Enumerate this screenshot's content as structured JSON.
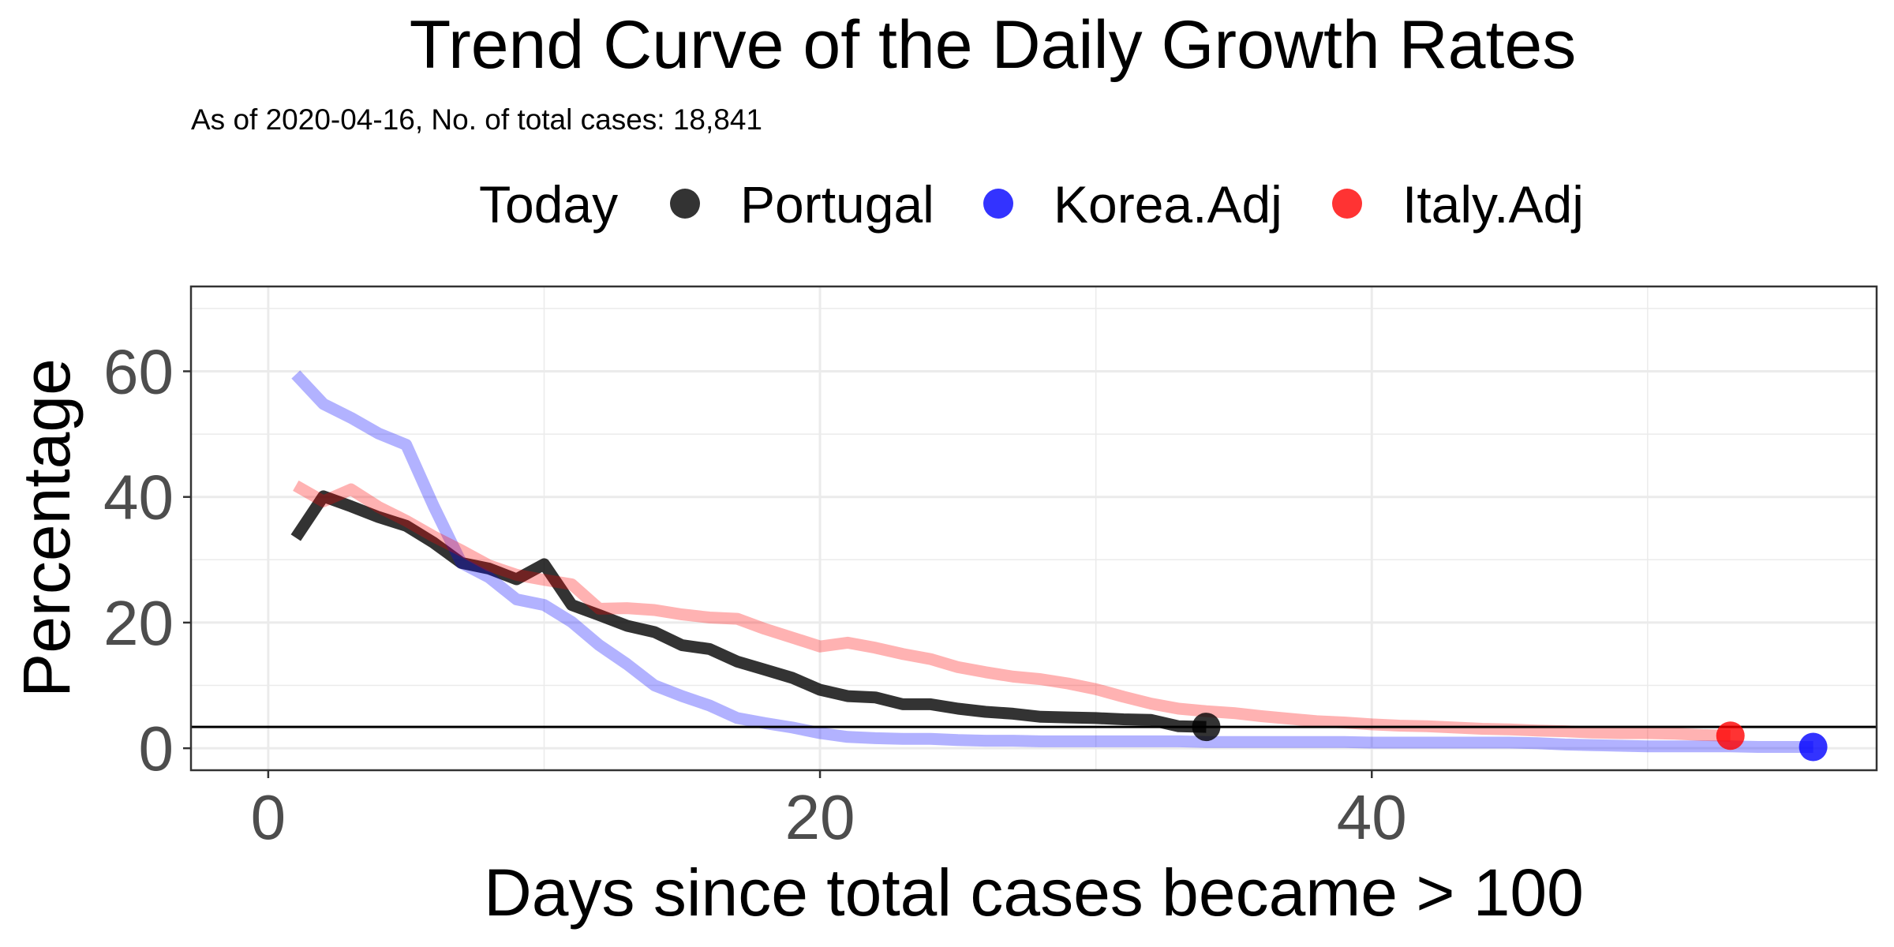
{
  "chart_data": {
    "type": "line",
    "title": "Trend Curve of the Daily Growth Rates",
    "subtitle": "As of 2020-04-16, No. of total cases: 18,841",
    "xlabel": "Days since total cases became > 100",
    "ylabel": "Percentage",
    "xlim": [
      -2.8,
      58.3
    ],
    "ylim": [
      -3.5,
      73.5
    ],
    "x_ticks": [
      0,
      20,
      40
    ],
    "y_ticks": [
      0,
      20,
      40,
      60
    ],
    "grid": true,
    "legend_position": "top",
    "legend_title": "Today",
    "reference_line_y": 3.4,
    "series": [
      {
        "name": "Portugal",
        "color": "#000000",
        "opacity": 0.8,
        "x": [
          1,
          2,
          3,
          4,
          5,
          6,
          7,
          8,
          9,
          10,
          11,
          12,
          13,
          14,
          15,
          16,
          17,
          18,
          19,
          20,
          21,
          22,
          23,
          24,
          25,
          26,
          27,
          28,
          29,
          30,
          31,
          32,
          33,
          34
        ],
        "y": [
          33.5,
          40.1,
          38.5,
          36.8,
          35.4,
          32.7,
          29.5,
          28.6,
          26.9,
          29.3,
          22.8,
          21.2,
          19.5,
          18.5,
          16.4,
          15.8,
          13.8,
          12.5,
          11.2,
          9.3,
          8.3,
          8.1,
          7.0,
          7.0,
          6.3,
          5.8,
          5.5,
          5.0,
          4.9,
          4.8,
          4.6,
          4.5,
          3.5,
          3.4
        ],
        "today": {
          "x": 34,
          "y": 3.4
        }
      },
      {
        "name": "Korea.Adj",
        "color": "#0000ff",
        "opacity": 0.3,
        "x": [
          1,
          2,
          3,
          4,
          5,
          6,
          7,
          8,
          9,
          10,
          11,
          12,
          13,
          14,
          15,
          16,
          17,
          18,
          19,
          20,
          21,
          22,
          23,
          24,
          25,
          26,
          27,
          28,
          29,
          30,
          31,
          32,
          33,
          34,
          35,
          36,
          37,
          38,
          39,
          40,
          41,
          42,
          43,
          44,
          45,
          46,
          47,
          48,
          49,
          50,
          51,
          52,
          53,
          54,
          55,
          56
        ],
        "y": [
          59.5,
          54.8,
          52.6,
          50.1,
          48.3,
          38.5,
          29.5,
          27.2,
          23.7,
          22.8,
          20.1,
          16.4,
          13.4,
          10.0,
          8.3,
          6.8,
          4.8,
          4.0,
          3.3,
          2.4,
          1.8,
          1.6,
          1.5,
          1.5,
          1.3,
          1.2,
          1.2,
          1.1,
          1.1,
          1.1,
          1.1,
          1.1,
          1.1,
          1.0,
          1.0,
          1.0,
          1.0,
          1.0,
          1.0,
          0.9,
          0.9,
          0.9,
          0.9,
          0.9,
          0.9,
          0.8,
          0.6,
          0.5,
          0.4,
          0.3,
          0.3,
          0.3,
          0.3,
          0.2,
          0.2,
          0.2
        ],
        "today": {
          "x": 56,
          "y": 0.2
        }
      },
      {
        "name": "Italy.Adj",
        "color": "#ff0000",
        "opacity": 0.3,
        "x": [
          1,
          2,
          3,
          4,
          5,
          6,
          7,
          8,
          9,
          10,
          11,
          12,
          13,
          14,
          15,
          16,
          17,
          18,
          19,
          20,
          21,
          22,
          23,
          24,
          25,
          26,
          27,
          28,
          29,
          30,
          31,
          32,
          33,
          34,
          35,
          36,
          37,
          38,
          39,
          40,
          41,
          42,
          43,
          44,
          45,
          46,
          47,
          48,
          49,
          50,
          51,
          52,
          53
        ],
        "y": [
          41.8,
          39.3,
          41.2,
          38.4,
          36.2,
          33.7,
          31.5,
          29.1,
          27.6,
          26.8,
          26.1,
          22.2,
          22.3,
          22.0,
          21.3,
          20.8,
          20.6,
          19.0,
          17.6,
          16.2,
          16.8,
          16.0,
          15.0,
          14.2,
          12.9,
          12.1,
          11.4,
          11.0,
          10.3,
          9.4,
          8.2,
          7.1,
          6.3,
          5.9,
          5.6,
          5.1,
          4.7,
          4.3,
          4.1,
          3.8,
          3.6,
          3.5,
          3.3,
          3.1,
          3.0,
          2.8,
          2.7,
          2.5,
          2.4,
          2.4,
          2.3,
          2.1,
          2.0
        ],
        "today": {
          "x": 53,
          "y": 2.0
        }
      }
    ]
  }
}
